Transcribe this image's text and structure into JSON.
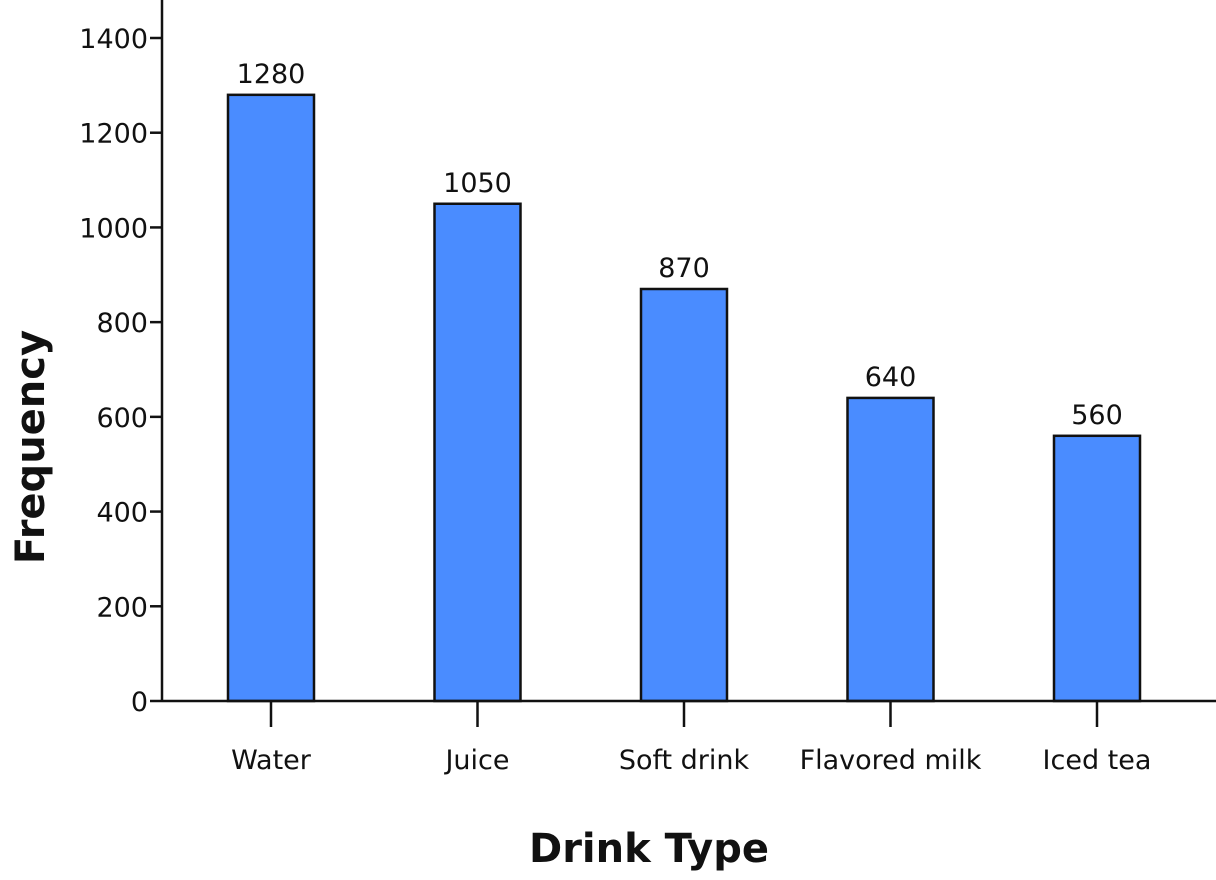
{
  "chart_data": {
    "type": "bar",
    "title": "",
    "xlabel": "Drink Type",
    "ylabel": "Frequency",
    "categories": [
      "Water",
      "Juice",
      "Soft drink",
      "Flavored milk",
      "Iced tea"
    ],
    "values": [
      1280,
      1050,
      870,
      640,
      560
    ],
    "data_labels": [
      "1280",
      "1050",
      "870",
      "640",
      "560"
    ],
    "yticks": [
      0,
      200,
      400,
      600,
      800,
      1000,
      1200,
      1400
    ],
    "ylim": [
      0,
      1480
    ],
    "grid": false,
    "legend": "none",
    "bar_color": "#4a8cff",
    "bar_edge_color": "#111111"
  }
}
